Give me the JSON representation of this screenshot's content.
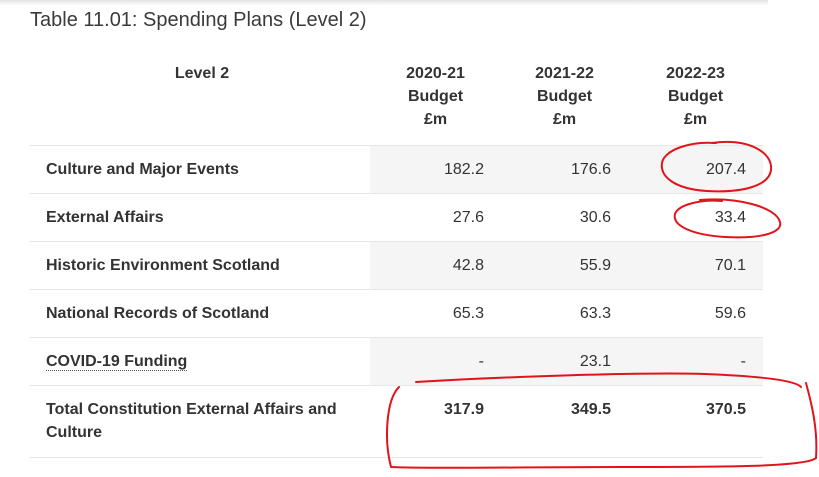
{
  "title": "Table 11.01: Spending Plans (Level 2)",
  "table": {
    "headers": [
      [
        "Level 2"
      ],
      [
        "2020-21",
        "Budget",
        "£m"
      ],
      [
        "2021-22",
        "Budget",
        "£m"
      ],
      [
        "2022-23",
        "Budget",
        "£m"
      ]
    ],
    "rows": [
      {
        "label": "Culture and Major Events",
        "values": [
          "182.2",
          "176.6",
          "207.4"
        ]
      },
      {
        "label": "External Affairs",
        "values": [
          "27.6",
          "30.6",
          "33.4"
        ]
      },
      {
        "label": "Historic Environment Scotland",
        "values": [
          "42.8",
          "55.9",
          "70.1"
        ]
      },
      {
        "label": "National Records of Scotland",
        "values": [
          "65.3",
          "63.3",
          "59.6"
        ]
      },
      {
        "label": "COVID-19 Funding",
        "values": [
          "-",
          "23.1",
          "-"
        ]
      },
      {
        "label": "Total Constitution External Affairs and Culture",
        "values": [
          "317.9",
          "349.5",
          "370.5"
        ]
      }
    ]
  },
  "annotations": {
    "ink_color": "#e1141b"
  }
}
